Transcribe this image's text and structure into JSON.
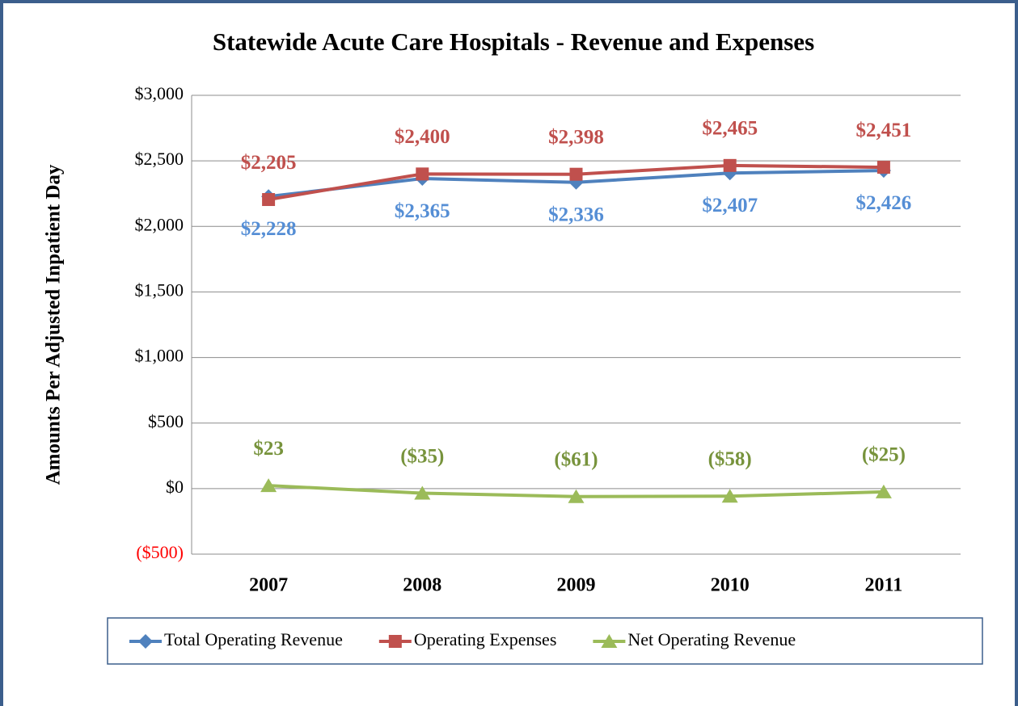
{
  "chart_data": {
    "type": "line",
    "title": "Statewide Acute Care Hospitals - Revenue and Expenses",
    "y_label": "Amounts Per Adjusted Inpatient Day",
    "categories": [
      "2007",
      "2008",
      "2009",
      "2010",
      "2011"
    ],
    "series": [
      {
        "name": "Total Operating Revenue",
        "color": "#4f81bd",
        "label_color": "#558ed5",
        "marker": "diamond",
        "label_position": "below",
        "values": [
          2228,
          2365,
          2336,
          2407,
          2426
        ],
        "value_labels": [
          "$2,228",
          "$2,365",
          "$2,336",
          "$2,407",
          "$2,426"
        ]
      },
      {
        "name": "Operating Expenses",
        "color": "#c0504d",
        "label_color": "#c0504d",
        "marker": "square",
        "label_position": "above",
        "values": [
          2205,
          2400,
          2398,
          2465,
          2451
        ],
        "value_labels": [
          "$2,205",
          "$2,400",
          "$2,398",
          "$2,465",
          "$2,451"
        ]
      },
      {
        "name": "Net Operating Revenue",
        "color": "#9bbb59",
        "label_color": "#77933c",
        "marker": "triangle",
        "label_position": "above",
        "values": [
          23,
          -35,
          -61,
          -58,
          -25
        ],
        "value_labels": [
          "$23",
          "($35)",
          "($61)",
          "($58)",
          "($25)"
        ]
      }
    ],
    "ylim": [
      -500,
      3000
    ],
    "yticks": [
      {
        "value": -500,
        "label": "($500)",
        "color": "#ff0000"
      },
      {
        "value": 0,
        "label": "$0"
      },
      {
        "value": 500,
        "label": "$500"
      },
      {
        "value": 1000,
        "label": "$1,000"
      },
      {
        "value": 1500,
        "label": "$1,500"
      },
      {
        "value": 2000,
        "label": "$2,000"
      },
      {
        "value": 2500,
        "label": "$2,500"
      },
      {
        "value": 3000,
        "label": "$3,000"
      }
    ],
    "grid": true,
    "legend": "bottom"
  }
}
